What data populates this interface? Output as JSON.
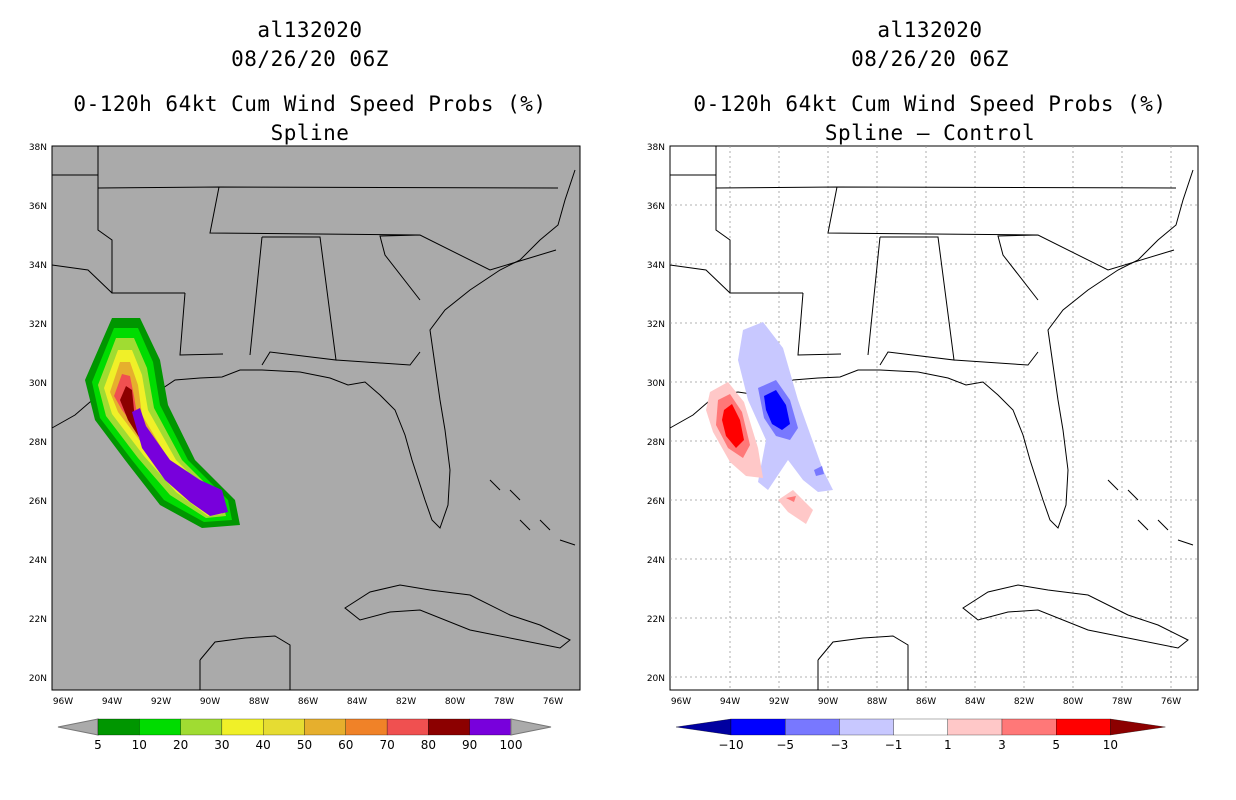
{
  "left_panel": {
    "storm_id": "al132020",
    "datetime": "08/26/20 06Z",
    "product": "0-120h 64kt Cum Wind Speed Probs (%)",
    "subtitle": "Spline",
    "legend_labels": [
      "5",
      "10",
      "20",
      "30",
      "40",
      "50",
      "60",
      "70",
      "80",
      "90",
      "100"
    ],
    "legend_colors": [
      "#009600",
      "#00dc00",
      "#a0dc32",
      "#f0f028",
      "#e6dc32",
      "#e6af2d",
      "#f08228",
      "#f05050",
      "#8c0000",
      "#7800dc"
    ],
    "background_color": "#aaaaaa"
  },
  "right_panel": {
    "storm_id": "al132020",
    "datetime": "08/26/20 06Z",
    "product": "0-120h 64kt Cum Wind Speed Probs (%)",
    "subtitle": "Spline – Control",
    "legend_labels": [
      "−10",
      "−5",
      "−3",
      "−1",
      "1",
      "3",
      "5",
      "10"
    ],
    "legend_colors": [
      "#0000a0",
      "#0000ff",
      "#7878ff",
      "#c8c8ff",
      "#ffffff",
      "#ffc8c8",
      "#ff7878",
      "#ff0000",
      "#8c0000"
    ],
    "background_color": "#ffffff"
  },
  "axes": {
    "lat_labels": [
      "38N",
      "36N",
      "34N",
      "32N",
      "30N",
      "28N",
      "26N",
      "24N",
      "22N",
      "20N"
    ],
    "lon_labels": [
      "96W",
      "94W",
      "92W",
      "90W",
      "88W",
      "86W",
      "84W",
      "82W",
      "80W",
      "78W",
      "76W"
    ]
  }
}
